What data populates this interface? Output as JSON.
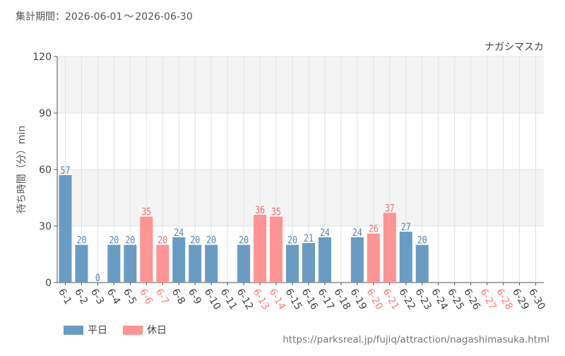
{
  "header": {
    "period_label": "集計期間：",
    "start": "2026-06-01",
    "range_sep": "〜",
    "end": "2026-06-30"
  },
  "chart_data": {
    "type": "bar",
    "title": "ナガシマスカ",
    "ylabel": "待ち時間（分）min",
    "xlabel": "",
    "ylim": [
      0,
      120
    ],
    "yticks": [
      0,
      30,
      60,
      90,
      120
    ],
    "grid": true,
    "categories": [
      "6-1",
      "6-2",
      "6-3",
      "6-4",
      "6-5",
      "6-6",
      "6-7",
      "6-8",
      "6-9",
      "6-10",
      "6-11",
      "6-12",
      "6-13",
      "6-14",
      "6-15",
      "6-16",
      "6-17",
      "6-18",
      "6-19",
      "6-20",
      "6-21",
      "6-22",
      "6-23",
      "6-24",
      "6-25",
      "6-26",
      "6-27",
      "6-28",
      "6-29",
      "6-30"
    ],
    "values": [
      57,
      20,
      0,
      20,
      20,
      35,
      20,
      24,
      20,
      20,
      null,
      20,
      36,
      35,
      20,
      21,
      24,
      null,
      24,
      26,
      37,
      27,
      20,
      null,
      null,
      null,
      null,
      null,
      null,
      null
    ],
    "day_type": [
      "weekday",
      "weekday",
      "weekday",
      "weekday",
      "weekday",
      "holiday",
      "holiday",
      "weekday",
      "weekday",
      "weekday",
      "weekday",
      "weekday",
      "holiday",
      "holiday",
      "weekday",
      "weekday",
      "weekday",
      "weekday",
      "weekday",
      "holiday",
      "holiday",
      "weekday",
      "weekday",
      "weekday",
      "weekday",
      "weekday",
      "holiday",
      "holiday",
      "weekday",
      "weekday"
    ],
    "legend": [
      {
        "key": "weekday",
        "name": "平日",
        "color": "#6a9bc3"
      },
      {
        "key": "holiday",
        "name": "休日",
        "color": "#ff9494"
      }
    ],
    "legend_position": "bottom-left",
    "colors": {
      "weekday_bar": "#6a9bc3",
      "holiday_bar": "#ff9494",
      "weekday_label": "#5585b5",
      "holiday_label": "#f07070",
      "weekday_tick": "#444444",
      "holiday_tick": "#ff7f7f",
      "band": "#f4f4f4",
      "grid": "#e3e3e3"
    }
  },
  "footer": {
    "source": "https://parksreal.jp/fujiq/attraction/nagashimasuka.html"
  }
}
